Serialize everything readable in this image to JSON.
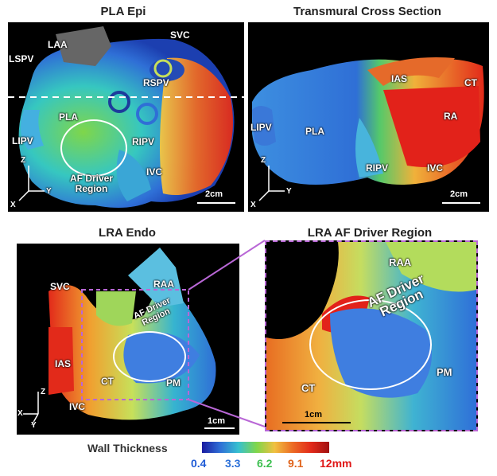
{
  "titles": {
    "pla_epi": "PLA Epi",
    "transmural": "Transmural Cross Section",
    "lra_endo": "LRA Endo",
    "lra_driver": "LRA AF Driver Region"
  },
  "pla_epi_labels": {
    "laa": "LAA",
    "svc": "SVC",
    "lspv": "LSPV",
    "rspv": "RSPV",
    "pla": "PLA",
    "lipv": "LIPV",
    "ripv": "RIPV",
    "ivc": "IVC",
    "driver": "AF Driver\nRegion"
  },
  "transmural_labels": {
    "ias": "IAS",
    "ct": "CT",
    "ra": "RA",
    "lipv": "LIPV",
    "pla": "PLA",
    "ripv": "RIPV",
    "ivc": "IVC"
  },
  "lra_endo_labels": {
    "svc": "SVC",
    "raa": "RAA",
    "driver": "AF Driver\nRegion",
    "ias": "IAS",
    "ct": "CT",
    "pm": "PM",
    "ivc": "IVC"
  },
  "lra_driver_labels": {
    "raa": "RAA",
    "driver": "AF Driver\nRegion",
    "ct": "CT",
    "pm": "PM"
  },
  "axes": {
    "z": "Z",
    "y": "Y",
    "x": "X"
  },
  "scale": {
    "two_cm": "2cm",
    "one_cm": "1cm"
  },
  "colorbar": {
    "title": "Wall Thickness",
    "ticks": [
      "0.4",
      "3.3",
      "6.2",
      "9.1",
      "12mm"
    ],
    "tick_colors": [
      "#1f5bd6",
      "#2b6fd8",
      "#4fcf4f",
      "#e0641c",
      "#e01818"
    ]
  }
}
